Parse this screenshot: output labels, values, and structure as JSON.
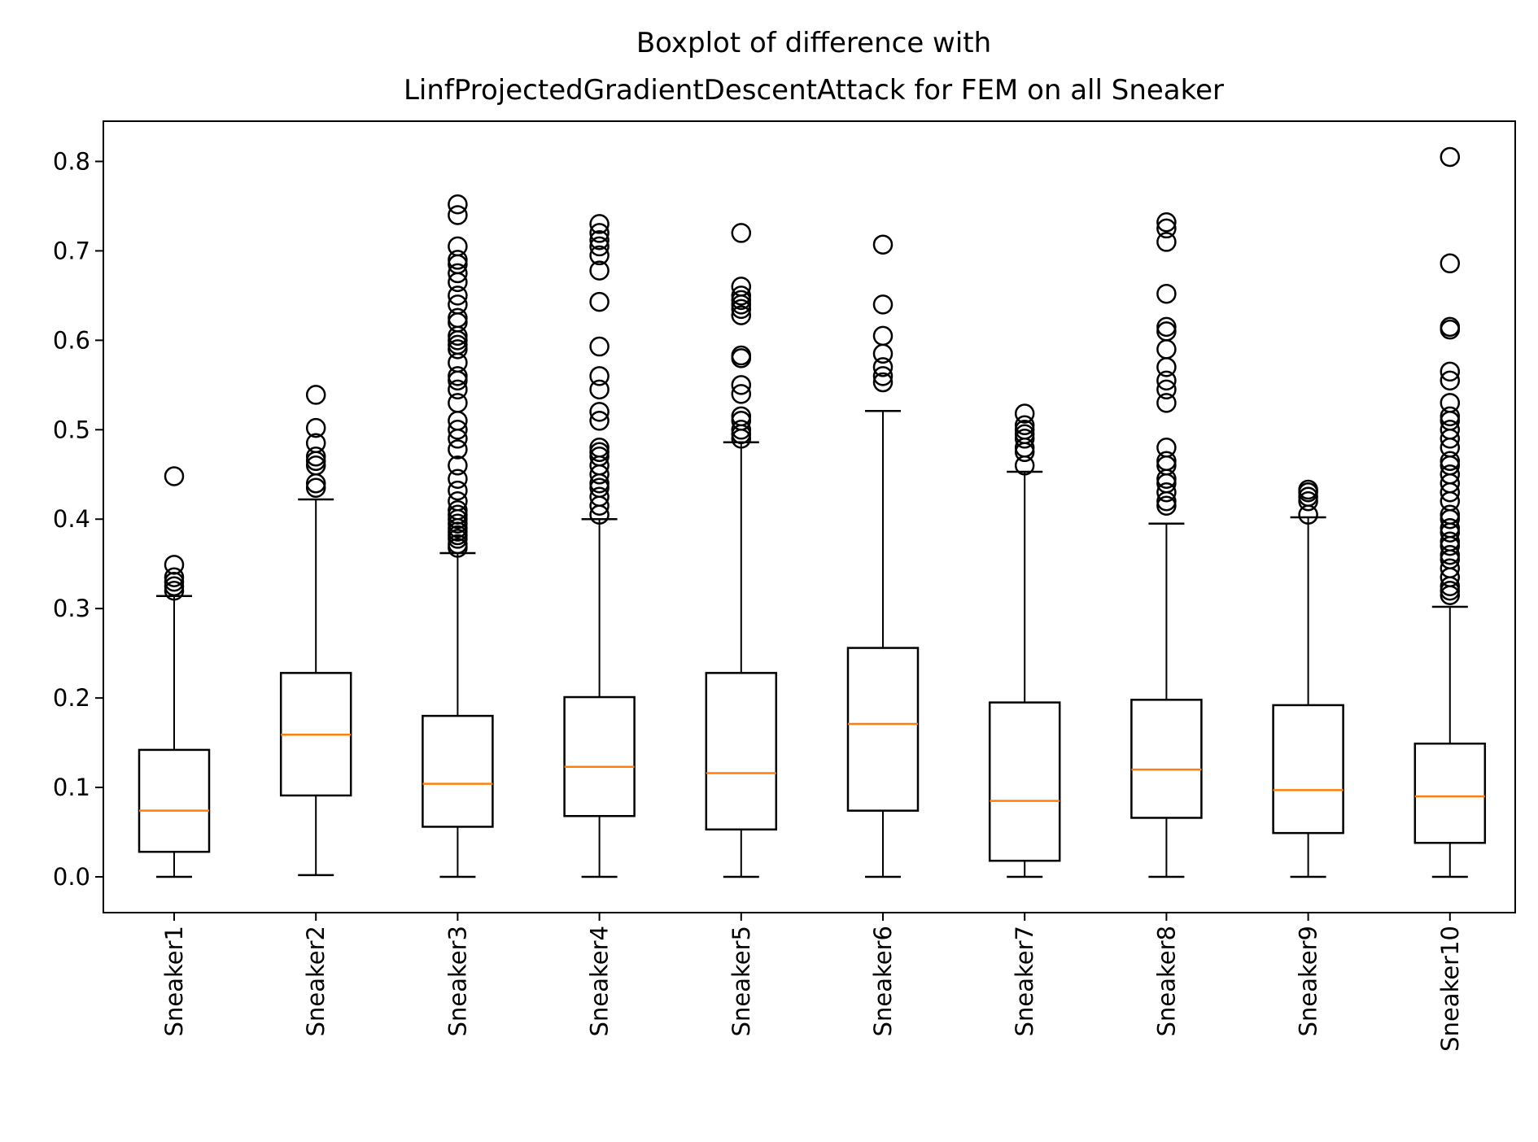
{
  "chart_data": {
    "type": "boxplot",
    "title_line1": "Boxplot of difference with",
    "title_line2": "LinfProjectedGradientDescentAttack for FEM on all Sneaker",
    "xlabel": "",
    "ylabel": "",
    "ylim": [
      -0.04,
      0.845
    ],
    "yticks": [
      0.0,
      0.1,
      0.2,
      0.3,
      0.4,
      0.5,
      0.6,
      0.7,
      0.8
    ],
    "ytick_labels": [
      "0.0",
      "0.1",
      "0.2",
      "0.3",
      "0.4",
      "0.5",
      "0.6",
      "0.7",
      "0.8"
    ],
    "categories": [
      "Sneaker1",
      "Sneaker2",
      "Sneaker3",
      "Sneaker4",
      "Sneaker5",
      "Sneaker6",
      "Sneaker7",
      "Sneaker8",
      "Sneaker9",
      "Sneaker10"
    ],
    "grid": false,
    "colors": {
      "box": "#000000",
      "median": "#ff7f0e",
      "flier": "#000000"
    },
    "boxes": [
      {
        "whislo": 0.0,
        "q1": 0.028,
        "med": 0.074,
        "q3": 0.142,
        "whishi": 0.314,
        "fliers": [
          0.32,
          0.325,
          0.33,
          0.335,
          0.349,
          0.448
        ]
      },
      {
        "whislo": 0.002,
        "q1": 0.091,
        "med": 0.159,
        "q3": 0.228,
        "whishi": 0.422,
        "fliers": [
          0.435,
          0.44,
          0.46,
          0.465,
          0.47,
          0.485,
          0.502,
          0.539
        ]
      },
      {
        "whislo": 0.0,
        "q1": 0.056,
        "med": 0.104,
        "q3": 0.18,
        "whishi": 0.362,
        "fliers": [
          0.368,
          0.372,
          0.378,
          0.382,
          0.386,
          0.39,
          0.395,
          0.4,
          0.405,
          0.41,
          0.42,
          0.432,
          0.445,
          0.46,
          0.478,
          0.49,
          0.5,
          0.51,
          0.53,
          0.545,
          0.555,
          0.56,
          0.575,
          0.59,
          0.595,
          0.6,
          0.605,
          0.62,
          0.625,
          0.64,
          0.65,
          0.665,
          0.675,
          0.685,
          0.69,
          0.705,
          0.74,
          0.752
        ]
      },
      {
        "whislo": 0.0,
        "q1": 0.068,
        "med": 0.123,
        "q3": 0.201,
        "whishi": 0.4,
        "fliers": [
          0.405,
          0.415,
          0.425,
          0.435,
          0.44,
          0.45,
          0.46,
          0.47,
          0.475,
          0.48,
          0.51,
          0.52,
          0.545,
          0.56,
          0.593,
          0.643,
          0.678,
          0.695,
          0.705,
          0.712,
          0.72,
          0.73
        ]
      },
      {
        "whislo": 0.0,
        "q1": 0.053,
        "med": 0.116,
        "q3": 0.228,
        "whishi": 0.486,
        "fliers": [
          0.49,
          0.495,
          0.5,
          0.51,
          0.515,
          0.54,
          0.55,
          0.58,
          0.583,
          0.628,
          0.635,
          0.64,
          0.645,
          0.65,
          0.66,
          0.72
        ]
      },
      {
        "whislo": 0.0,
        "q1": 0.074,
        "med": 0.171,
        "q3": 0.256,
        "whishi": 0.521,
        "fliers": [
          0.553,
          0.56,
          0.57,
          0.585,
          0.605,
          0.64,
          0.707
        ]
      },
      {
        "whislo": 0.0,
        "q1": 0.018,
        "med": 0.085,
        "q3": 0.195,
        "whishi": 0.453,
        "fliers": [
          0.46,
          0.475,
          0.48,
          0.49,
          0.495,
          0.5,
          0.505,
          0.518
        ]
      },
      {
        "whislo": 0.0,
        "q1": 0.066,
        "med": 0.12,
        "q3": 0.198,
        "whishi": 0.395,
        "fliers": [
          0.415,
          0.42,
          0.43,
          0.44,
          0.445,
          0.46,
          0.465,
          0.48,
          0.53,
          0.545,
          0.555,
          0.57,
          0.59,
          0.61,
          0.615,
          0.652,
          0.71,
          0.725,
          0.732
        ]
      },
      {
        "whislo": 0.0,
        "q1": 0.049,
        "med": 0.097,
        "q3": 0.192,
        "whishi": 0.402,
        "fliers": [
          0.405,
          0.42,
          0.425,
          0.43,
          0.433
        ]
      },
      {
        "whislo": 0.0,
        "q1": 0.038,
        "med": 0.09,
        "q3": 0.149,
        "whishi": 0.302,
        "fliers": [
          0.315,
          0.32,
          0.325,
          0.335,
          0.345,
          0.355,
          0.36,
          0.37,
          0.375,
          0.385,
          0.39,
          0.4,
          0.405,
          0.42,
          0.43,
          0.44,
          0.45,
          0.46,
          0.465,
          0.48,
          0.49,
          0.5,
          0.51,
          0.515,
          0.53,
          0.555,
          0.565,
          0.612,
          0.615,
          0.686,
          0.805
        ]
      }
    ]
  }
}
